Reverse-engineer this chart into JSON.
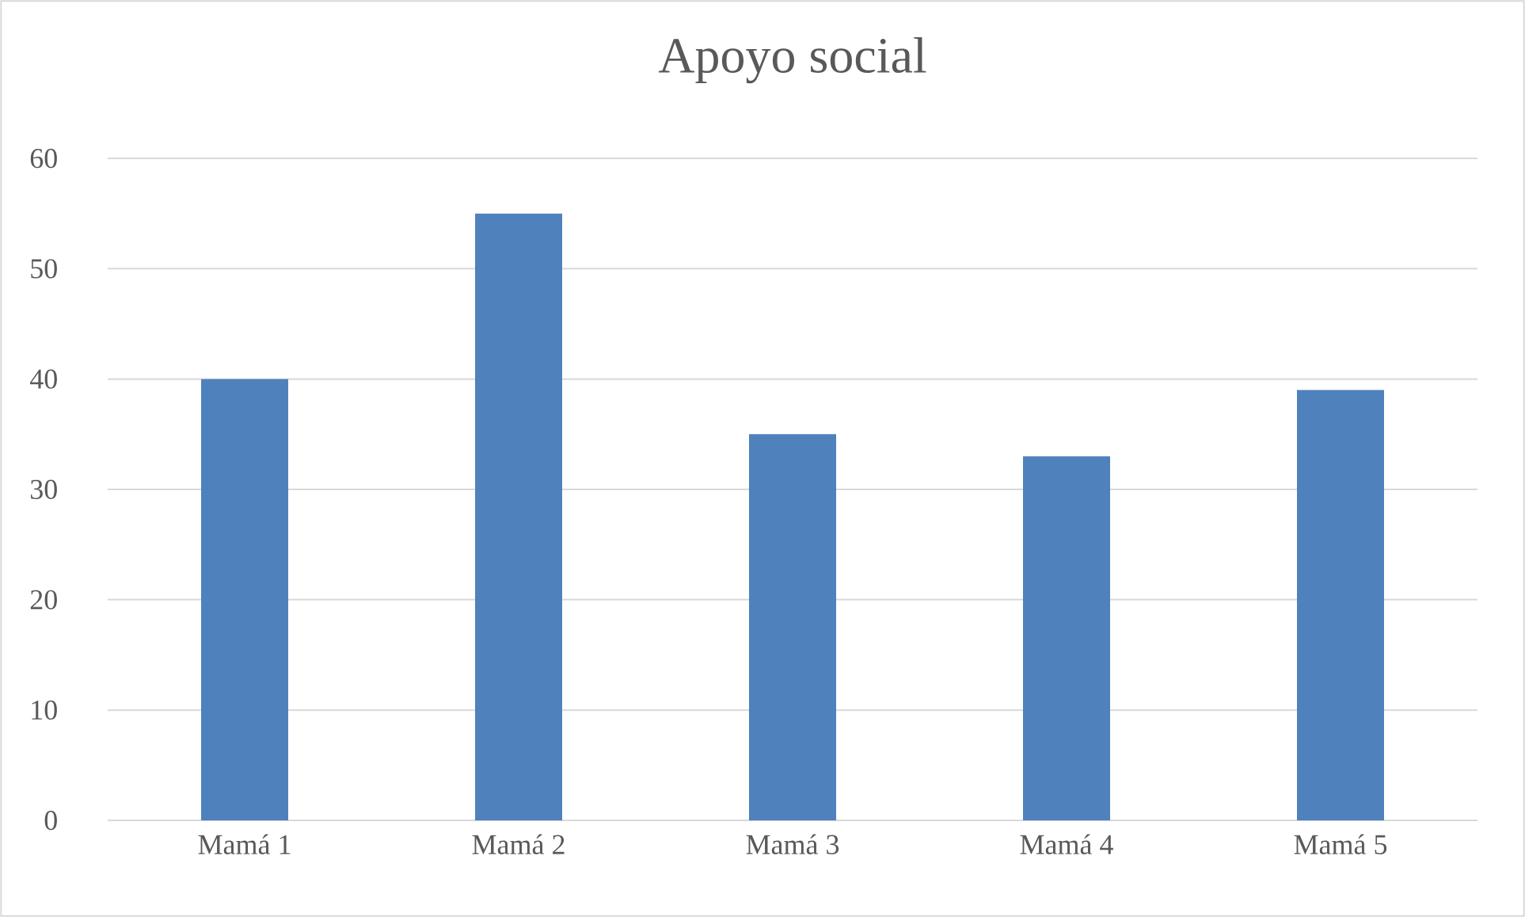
{
  "chart_data": {
    "type": "bar",
    "title": "Apoyo social",
    "categories": [
      "Mamá 1",
      "Mamá 2",
      "Mamá 3",
      "Mamá 4",
      "Mamá 5"
    ],
    "values": [
      40,
      55,
      35,
      33,
      39
    ],
    "color": "#4f81bd",
    "ylim": [
      0,
      60
    ],
    "yticks": [
      0,
      10,
      20,
      30,
      40,
      50,
      60
    ],
    "grid": "y"
  }
}
